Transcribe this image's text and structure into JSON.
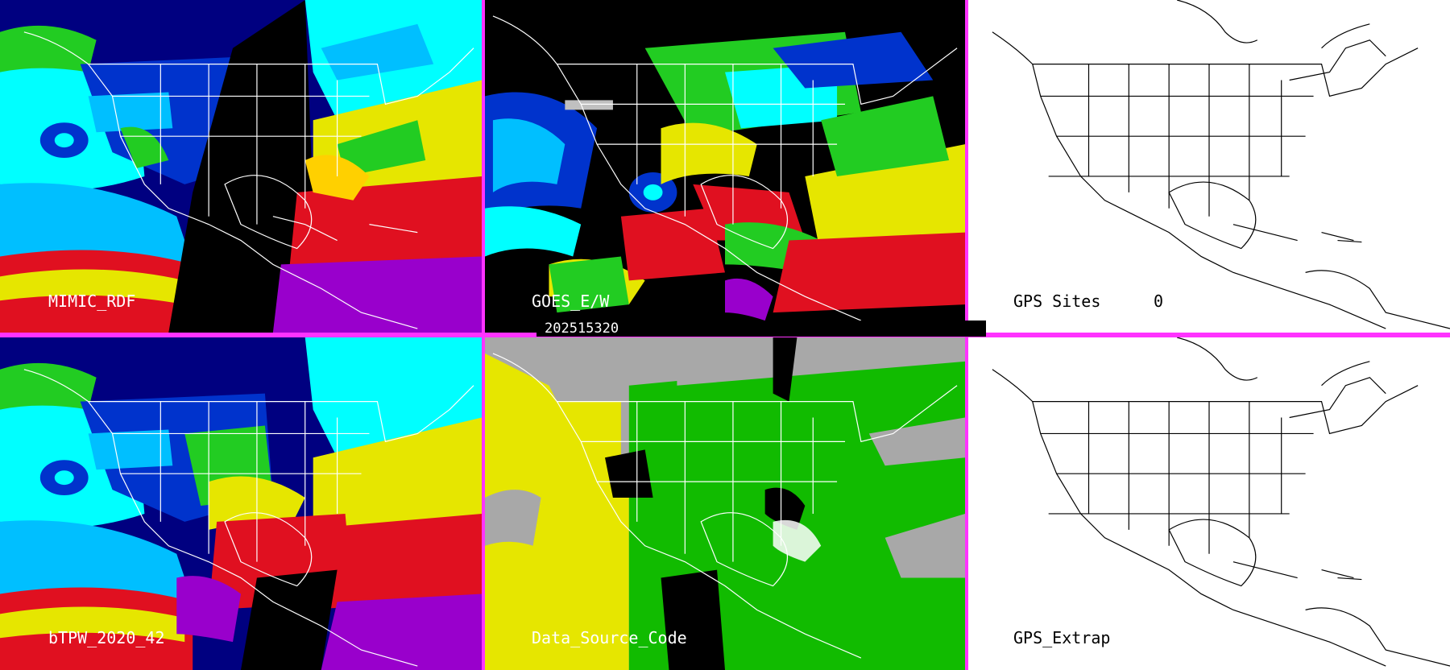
{
  "panels": [
    {
      "label": "MIMIC_RDF",
      "style": "satellite-rainbow"
    },
    {
      "label": "GOES_E/W",
      "style": "satellite-sparse"
    },
    {
      "label": "GPS Sites",
      "style": "map-white",
      "count": "0"
    },
    {
      "label": "bTPW_2020_42",
      "style": "satellite-rainbow"
    },
    {
      "label": "Data_Source_Code",
      "style": "source-code"
    },
    {
      "label": "GPS_Extrap",
      "style": "map-white"
    }
  ],
  "timestamp": "202515320",
  "colors": {
    "divider": "#ff33ff",
    "outline_light": "#ffffff",
    "outline_dark": "#000000",
    "ramp": [
      "#000080",
      "#0033cc",
      "#00bfff",
      "#00ffff",
      "#22cc22",
      "#e6e600",
      "#ffd000",
      "#e01020",
      "#9900cc"
    ],
    "source_gray": "#a8a8a8",
    "source_yellow": "#e6e600",
    "source_green": "#11bb00"
  }
}
